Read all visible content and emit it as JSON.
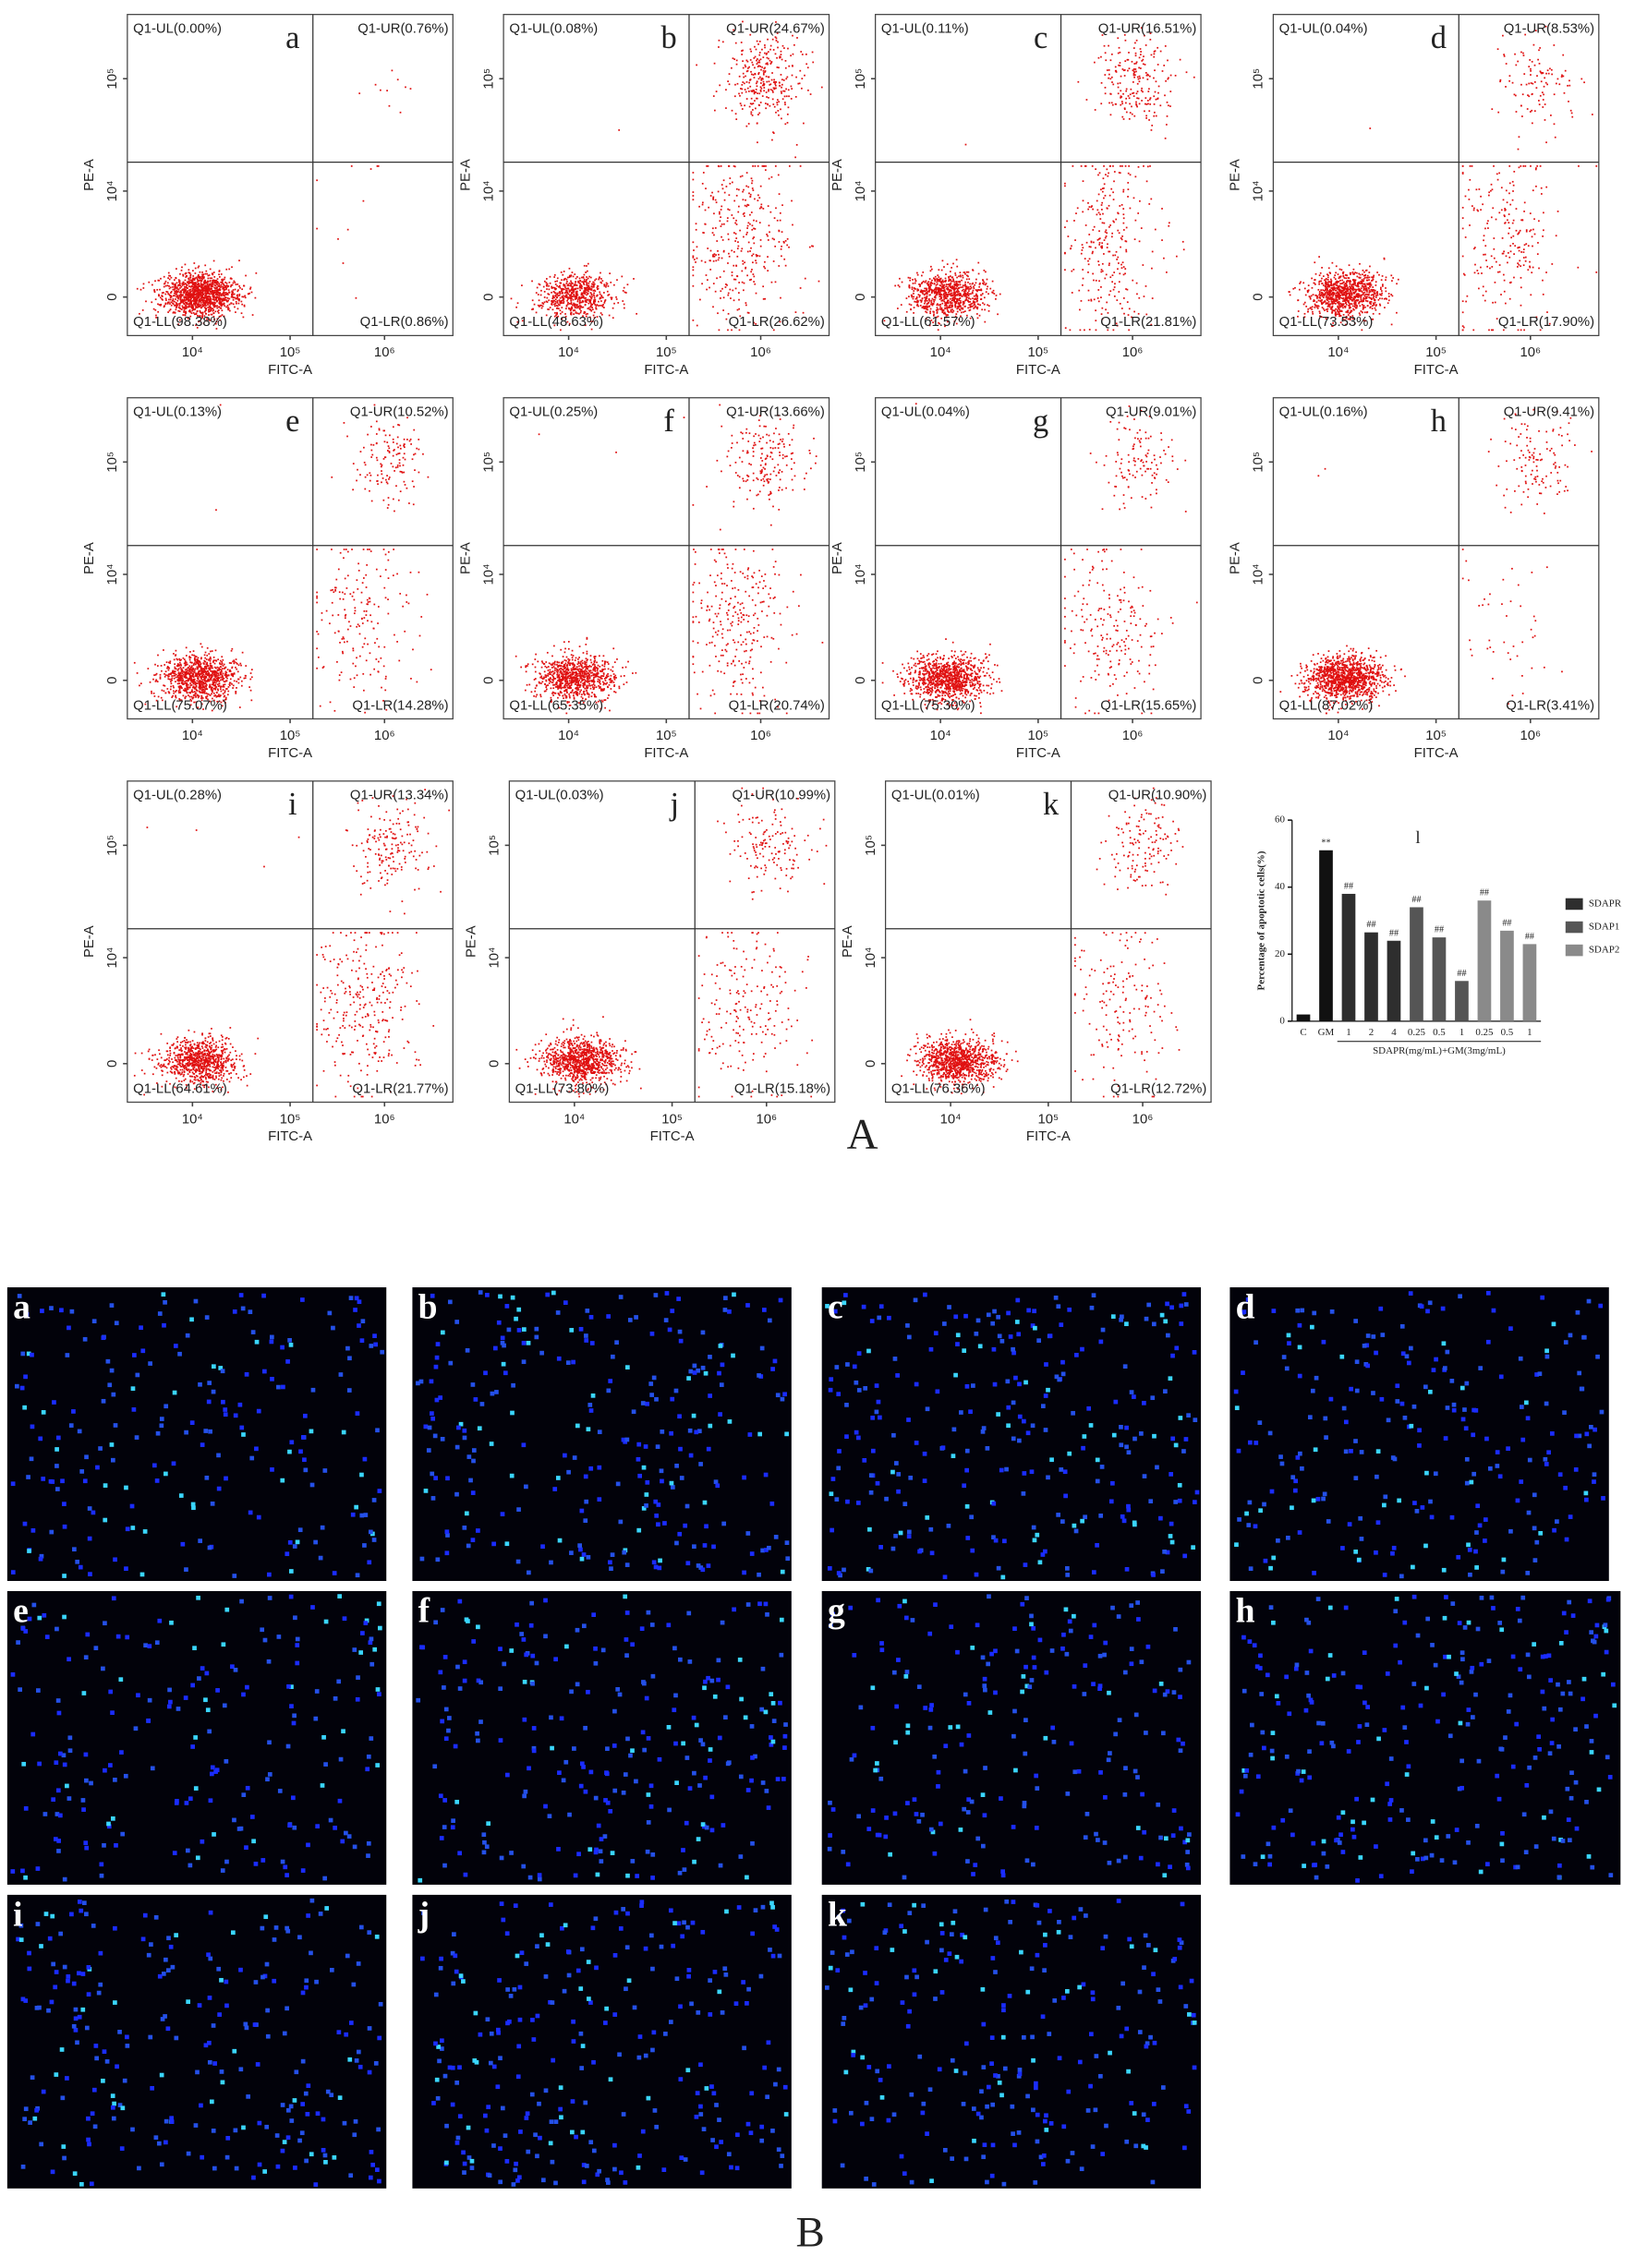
{
  "flow_axes": {
    "x_label": "FITC-A",
    "y_label": "PE-A",
    "xticks": [
      {
        "value": 10000,
        "label": "10⁴"
      },
      {
        "value": 100000,
        "label": "10⁵"
      },
      {
        "value": 1000000,
        "label": "10⁶"
      }
    ],
    "yticks": [
      0,
      {
        "value": 10000,
        "label": "10⁴"
      },
      {
        "value": 100000,
        "label": "10⁵"
      }
    ]
  },
  "flow_plots": [
    {
      "letter": "a",
      "quadrants": [
        {
          "value": 0.0,
          "label": "Q1-UL(0.00%)"
        },
        {
          "value": 0.76,
          "label": "Q1-UR(0.76%)"
        },
        {
          "value": 98.38,
          "label": "Q1-LL(98.38%)"
        },
        {
          "value": 0.86,
          "label": "Q1-LR(0.86%)"
        }
      ]
    },
    {
      "letter": "b",
      "quadrants": [
        {
          "value": 0.08,
          "label": "Q1-UL(0.08%)"
        },
        {
          "value": 24.67,
          "label": "Q1-UR(24.67%)"
        },
        {
          "value": 48.63,
          "label": "Q1-LL(48.63%)"
        },
        {
          "value": 26.62,
          "label": "Q1-LR(26.62%)"
        }
      ]
    },
    {
      "letter": "c",
      "quadrants": [
        {
          "value": 0.11,
          "label": "Q1-UL(0.11%)"
        },
        {
          "value": 16.51,
          "label": "Q1-UR(16.51%)"
        },
        {
          "value": 61.57,
          "label": "Q1-LL(61.57%)"
        },
        {
          "value": 21.81,
          "label": "Q1-LR(21.81%)"
        }
      ]
    },
    {
      "letter": "d",
      "quadrants": [
        {
          "value": 0.04,
          "label": "Q1-UL(0.04%)"
        },
        {
          "value": 8.53,
          "label": "Q1-UR(8.53%)"
        },
        {
          "value": 73.53,
          "label": "Q1-LL(73.53%)"
        },
        {
          "value": 17.9,
          "label": "Q1-LR(17.90%)"
        }
      ]
    },
    {
      "letter": "e",
      "quadrants": [
        {
          "value": 0.13,
          "label": "Q1-UL(0.13%)"
        },
        {
          "value": 10.52,
          "label": "Q1-UR(10.52%)"
        },
        {
          "value": 75.07,
          "label": "Q1-LL(75.07%)"
        },
        {
          "value": 14.28,
          "label": "Q1-LR(14.28%)"
        }
      ]
    },
    {
      "letter": "f",
      "quadrants": [
        {
          "value": 0.25,
          "label": "Q1-UL(0.25%)"
        },
        {
          "value": 13.66,
          "label": "Q1-UR(13.66%)"
        },
        {
          "value": 65.35,
          "label": "Q1-LL(65.35%)"
        },
        {
          "value": 20.74,
          "label": "Q1-LR(20.74%)"
        }
      ]
    },
    {
      "letter": "g",
      "quadrants": [
        {
          "value": 0.04,
          "label": "Q1-UL(0.04%)"
        },
        {
          "value": 9.01,
          "label": "Q1-UR(9.01%)"
        },
        {
          "value": 75.3,
          "label": "Q1-LL(75.30%)"
        },
        {
          "value": 15.65,
          "label": "Q1-LR(15.65%)"
        }
      ]
    },
    {
      "letter": "h",
      "quadrants": [
        {
          "value": 0.16,
          "label": "Q1-UL(0.16%)"
        },
        {
          "value": 9.41,
          "label": "Q1-UR(9.41%)"
        },
        {
          "value": 87.02,
          "label": "Q1-LL(87.02%)"
        },
        {
          "value": 3.41,
          "label": "Q1-LR(3.41%)"
        }
      ]
    },
    {
      "letter": "i",
      "quadrants": [
        {
          "value": 0.28,
          "label": "Q1-UL(0.28%)"
        },
        {
          "value": 13.34,
          "label": "Q1-UR(13.34%)"
        },
        {
          "value": 64.61,
          "label": "Q1-LL(64.61%)"
        },
        {
          "value": 21.77,
          "label": "Q1-LR(21.77%)"
        }
      ]
    },
    {
      "letter": "j",
      "quadrants": [
        {
          "value": 0.03,
          "label": "Q1-UL(0.03%)"
        },
        {
          "value": 10.99,
          "label": "Q1-UR(10.99%)"
        },
        {
          "value": 73.8,
          "label": "Q1-LL(73.80%)"
        },
        {
          "value": 15.18,
          "label": "Q1-LR(15.18%)"
        }
      ]
    },
    {
      "letter": "k",
      "quadrants": [
        {
          "value": 0.01,
          "label": "Q1-UL(0.01%)"
        },
        {
          "value": 10.9,
          "label": "Q1-UR(10.90%)"
        },
        {
          "value": 76.36,
          "label": "Q1-LL(76.36%)"
        },
        {
          "value": 12.72,
          "label": "Q1-LR(12.72%)"
        }
      ]
    }
  ],
  "chart_data": {
    "type": "bar",
    "title": "l",
    "y_label": "Percentage of apoptotic cells(%)",
    "x_label": "SDAPR(mg/mL)+GM(3mg/mL)",
    "categories": [
      "C",
      "GM",
      "1",
      "2",
      "4",
      "0.25",
      "0.5",
      "1",
      "0.25",
      "0.5",
      "1"
    ],
    "values": [
      2,
      51,
      38,
      26.5,
      24,
      34,
      25,
      12,
      36,
      27,
      23
    ],
    "bar_colors": [
      "#111111",
      "#111111",
      "#2e2e2e",
      "#2e2e2e",
      "#2e2e2e",
      "#555555",
      "#555555",
      "#555555",
      "#8a8a8a",
      "#8a8a8a",
      "#8a8a8a"
    ],
    "annotations": [
      null,
      "**",
      "##",
      "##",
      "##",
      "##",
      "##",
      "##",
      "##",
      "##",
      "##"
    ],
    "legend": [
      {
        "name": "SDAPR",
        "color": "#2e2e2e"
      },
      {
        "name": "SDAP1",
        "color": "#555555"
      },
      {
        "name": "SDAP2",
        "color": "#8a8a8a"
      }
    ],
    "ylim": [
      0,
      60
    ],
    "yticks": [
      0,
      20,
      40,
      60
    ]
  },
  "panel_a_label": "A",
  "panel_b": {
    "label": "B",
    "panels": [
      "a",
      "b",
      "c",
      "d",
      "e",
      "f",
      "g",
      "h",
      "i",
      "j",
      "k"
    ]
  }
}
